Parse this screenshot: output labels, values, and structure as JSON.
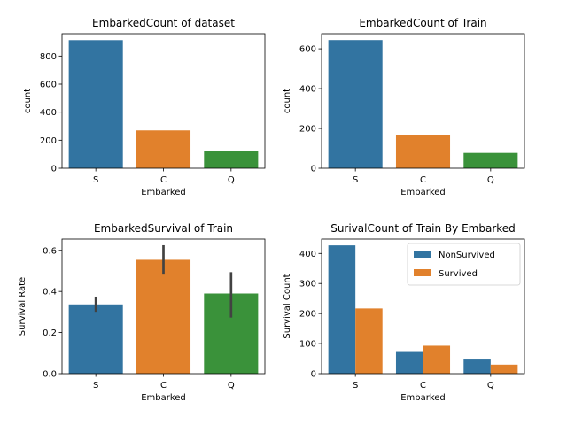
{
  "colors": {
    "blue": "#3274a1",
    "orange": "#e1812c",
    "green": "#3a923a",
    "error": "#424242",
    "axis": "#000000"
  },
  "chart_data": [
    {
      "type": "bar",
      "title": "EmbarkedCount of dataset",
      "xlabel": "Embarked",
      "ylabel": "count",
      "categories": [
        "S",
        "C",
        "Q"
      ],
      "values": [
        914,
        270,
        123
      ],
      "ylim": [
        0,
        960
      ],
      "yticks": [
        0,
        200,
        400,
        600,
        800
      ],
      "colors": [
        "#3274a1",
        "#e1812c",
        "#3a923a"
      ],
      "grid": false
    },
    {
      "type": "bar",
      "title": "EmbarkedCount of Train",
      "xlabel": "Embarked",
      "ylabel": "count",
      "categories": [
        "S",
        "C",
        "Q"
      ],
      "values": [
        644,
        168,
        77
      ],
      "ylim": [
        0,
        676
      ],
      "yticks": [
        0,
        200,
        400,
        600
      ],
      "colors": [
        "#3274a1",
        "#e1812c",
        "#3a923a"
      ],
      "grid": false
    },
    {
      "type": "bar",
      "title": "EmbarkedSurvival of Train",
      "xlabel": "Embarked",
      "ylabel": "Survival Rate",
      "categories": [
        "S",
        "C",
        "Q"
      ],
      "values": [
        0.337,
        0.554,
        0.39
      ],
      "error_low": [
        0.301,
        0.482,
        0.273
      ],
      "error_high": [
        0.375,
        0.625,
        0.494
      ],
      "ylim": [
        0,
        0.655
      ],
      "yticks": [
        0.0,
        0.2,
        0.4,
        0.6
      ],
      "colors": [
        "#3274a1",
        "#e1812c",
        "#3a923a"
      ],
      "grid": false
    },
    {
      "type": "bar",
      "title": "SurivalCount of Train By Embarked",
      "xlabel": "Embarked",
      "ylabel": "Survival Count",
      "categories": [
        "S",
        "C",
        "Q"
      ],
      "series": [
        {
          "name": "NonSurvived",
          "values": [
            427,
            75,
            47
          ],
          "color": "#3274a1"
        },
        {
          "name": "Survived",
          "values": [
            217,
            93,
            30
          ],
          "color": "#e1812c"
        }
      ],
      "ylim": [
        0,
        448
      ],
      "yticks": [
        0,
        100,
        200,
        300,
        400
      ],
      "legend": "top-right",
      "grid": false
    }
  ]
}
